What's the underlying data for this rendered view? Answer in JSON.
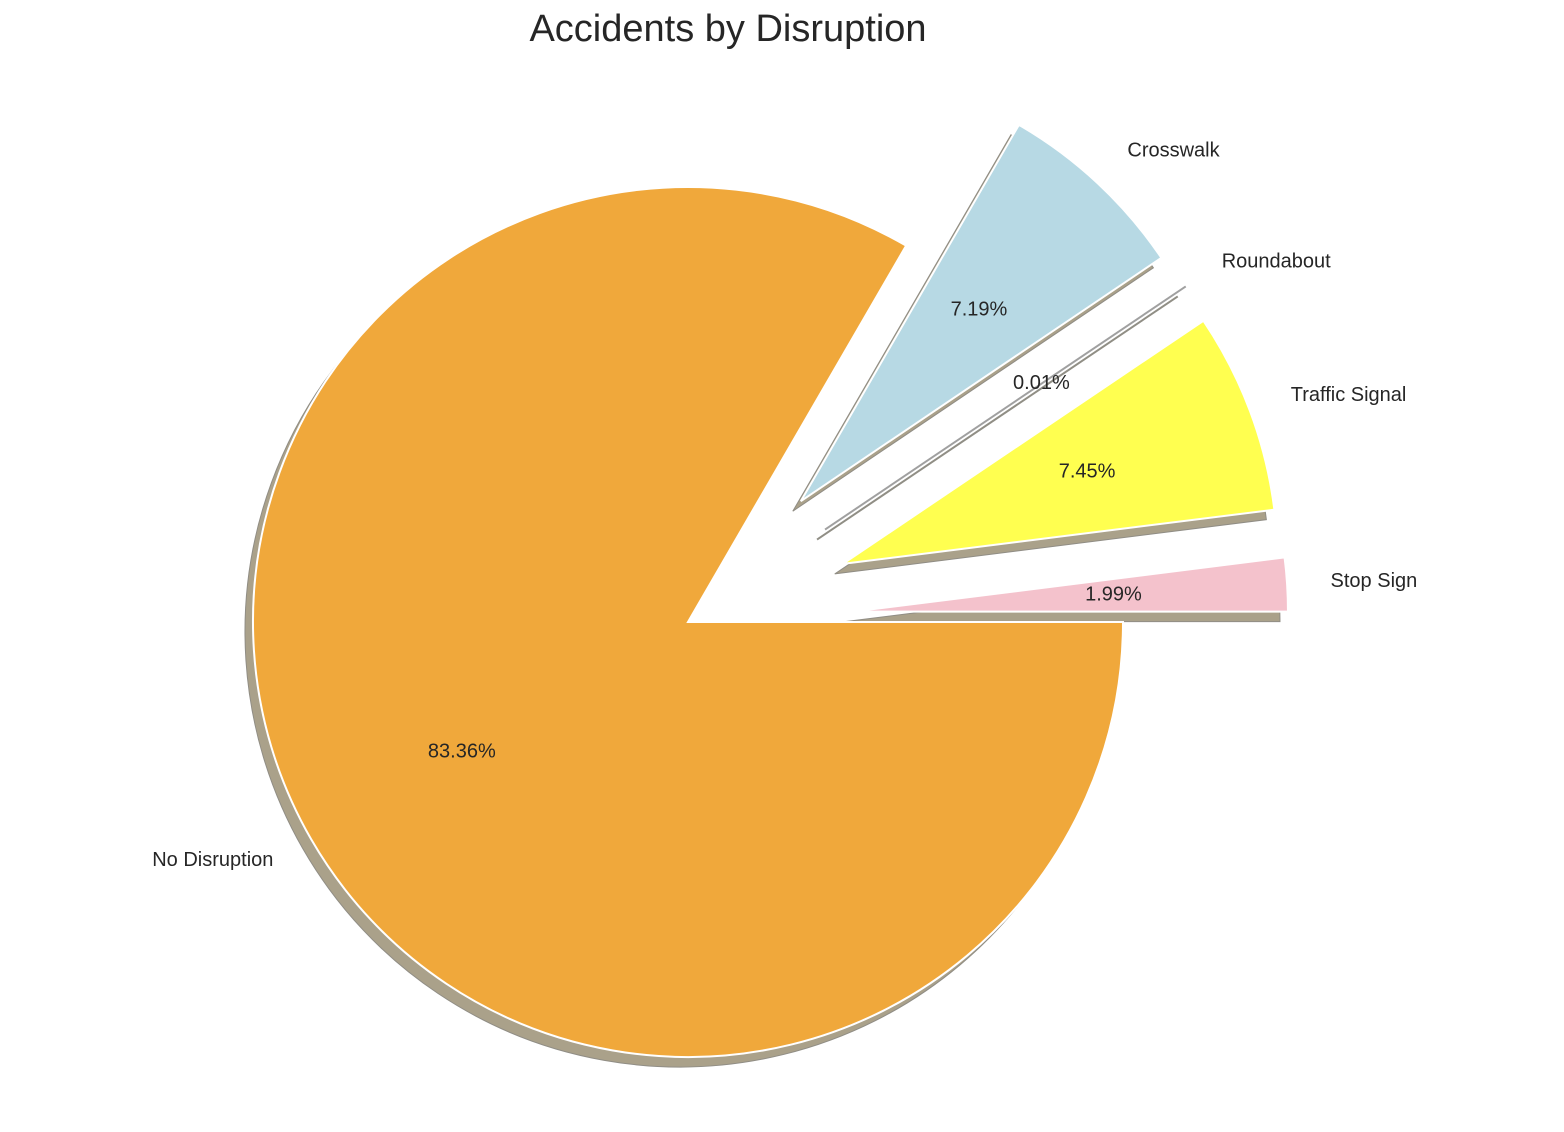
{
  "chart_data": {
    "type": "pie",
    "title": "Accidents by Disruption",
    "labels": [
      "Stop Sign",
      "Traffic Signal",
      "Roundabout",
      "Crosswalk",
      "No Disruption"
    ],
    "values": [
      1.99,
      7.45,
      0.01,
      7.19,
      83.36
    ],
    "value_labels": [
      "1.99%",
      "7.45%",
      "0.01%",
      "7.19%",
      "83.36%"
    ],
    "colors": [
      "#f4c2cc",
      "#ffff50",
      "#9b9b9b",
      "#b7d9e4",
      "#f0a83b"
    ],
    "exploded": [
      true,
      true,
      true,
      true,
      false
    ],
    "shadow": true,
    "start_angle_deg": 0,
    "direction": "counterclockwise",
    "legend": "none"
  }
}
